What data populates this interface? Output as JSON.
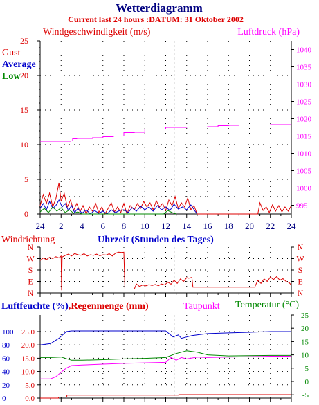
{
  "header": {
    "title": "Wetterdiagramm",
    "subtitle": "Current last 24 hours :DATUM: 31 Oktober 2002"
  },
  "colors": {
    "red": "#dd0000",
    "magenta": "#ff00ff",
    "blue": "#0000cc",
    "green": "#008800",
    "navy": "#000080",
    "axis": "#000000"
  },
  "chart_data": [
    {
      "type": "line",
      "name": "wind-pressure",
      "title": "Windgeschwindigkeit (m/s)",
      "title_right": "Luftdruck (hPa)",
      "legend": [
        "Gust",
        "Average",
        "Low"
      ],
      "x_ticks": [
        "24",
        "2",
        "4",
        "6",
        "8",
        "10",
        "12",
        "14",
        "16",
        "18",
        "20",
        "22",
        "24"
      ],
      "x_range": [
        0,
        24
      ],
      "ylim": [
        0,
        25
      ],
      "y_ticks": [
        "0",
        "5",
        "10",
        "15",
        "20",
        "25"
      ],
      "ylim_right": [
        992.5,
        1042.5
      ],
      "y_ticks_right": [
        "995",
        "1000",
        "1005",
        "1010",
        "1015",
        "1020",
        "1025",
        "1030",
        "1035",
        "1040"
      ],
      "grid": "dotted",
      "series": [
        {
          "name": "Luftdruck",
          "color": "#ff00ff",
          "axis": "right",
          "x": [
            0,
            2,
            2.9,
            3.1,
            3.5,
            5,
            6,
            7,
            8,
            9,
            10,
            12,
            13,
            14,
            16,
            17,
            18,
            19,
            20,
            22,
            24
          ],
          "y": [
            1013.5,
            1013.5,
            1013.6,
            1014.2,
            1014.3,
            1014.5,
            1014.8,
            1015.0,
            1016.0,
            1016.1,
            1017.0,
            1017.5,
            1017.5,
            1017.6,
            1017.7,
            1018.0,
            1018.1,
            1018.2,
            1018.2,
            1018.3,
            1018.3
          ]
        },
        {
          "name": "Gust",
          "color": "#dd0000",
          "axis": "left",
          "x": [
            0,
            0.3,
            0.6,
            0.9,
            1.2,
            1.5,
            1.8,
            2.0,
            2.3,
            2.6,
            2.9,
            3.2,
            3.5,
            3.8,
            4.1,
            4.4,
            4.7,
            5.0,
            5.3,
            5.6,
            5.9,
            6.2,
            6.5,
            6.8,
            7.1,
            7.4,
            7.7,
            8.0,
            8.3,
            8.6,
            9.0,
            9.3,
            9.6,
            9.9,
            10.2,
            10.5,
            10.8,
            11.1,
            11.4,
            11.7,
            12.0,
            12.3,
            12.6,
            12.9,
            13.2,
            13.5,
            13.8,
            14.1,
            14.4,
            14.7,
            15.0,
            15.5,
            20.8,
            21.0,
            21.3,
            21.6,
            21.9,
            22.2,
            22.5,
            22.8,
            23.1,
            23.4,
            23.7,
            24.0
          ],
          "y": [
            1.2,
            2.8,
            1.5,
            3.0,
            1.0,
            2.2,
            4.5,
            1.8,
            3.0,
            1.0,
            2.0,
            0.5,
            1.5,
            0.3,
            1.2,
            0.0,
            1.0,
            0.4,
            1.5,
            0.2,
            1.0,
            0.0,
            0.8,
            1.6,
            0.3,
            1.0,
            0.2,
            1.5,
            0.0,
            1.2,
            0.6,
            1.5,
            0.8,
            1.8,
            1.0,
            1.6,
            0.6,
            1.9,
            1.0,
            1.5,
            0.5,
            2.0,
            1.2,
            2.5,
            0.8,
            1.6,
            1.0,
            2.3,
            0.6,
            1.2,
            0.0,
            0.0,
            0.0,
            1.6,
            0.5,
            1.0,
            0.2,
            1.3,
            0.4,
            1.2,
            0.3,
            1.0,
            0.4,
            1.2
          ]
        },
        {
          "name": "Average",
          "color": "#0000cc",
          "axis": "left",
          "x": [
            0,
            0.3,
            0.6,
            0.9,
            1.2,
            1.5,
            1.8,
            2.1,
            2.4,
            2.7,
            3.0,
            3.3,
            3.6,
            4.0,
            4.4,
            4.8,
            5.2,
            5.6,
            6.0,
            6.4,
            6.8,
            7.2,
            7.6,
            8.0,
            8.4,
            8.8,
            9.2,
            9.6,
            10.0,
            10.4,
            10.8,
            11.2,
            11.6,
            12.0,
            12.4,
            12.8,
            13.2,
            13.6,
            14.0,
            14.4,
            14.8,
            15.0
          ],
          "y": [
            0.8,
            1.5,
            0.6,
            1.8,
            0.8,
            1.2,
            2.0,
            1.0,
            1.5,
            0.5,
            1.2,
            0.2,
            0.8,
            0.1,
            0.6,
            0.0,
            0.5,
            0.1,
            0.4,
            0.0,
            0.6,
            0.2,
            0.5,
            0.6,
            0.2,
            0.9,
            0.4,
            1.1,
            0.6,
            1.0,
            0.4,
            1.2,
            0.6,
            1.0,
            0.5,
            1.4,
            0.7,
            1.0,
            0.6,
            1.3,
            0.4,
            0.0
          ]
        },
        {
          "name": "Low",
          "color": "#008800",
          "axis": "left",
          "x": [
            0,
            0.4,
            0.8,
            1.2,
            1.6,
            2.0,
            2.4,
            2.8,
            3.2,
            3.6,
            4.0,
            11.8,
            12.2,
            12.6,
            13.0
          ],
          "y": [
            0.3,
            0.8,
            0.2,
            1.0,
            0.4,
            0.9,
            0.2,
            0.6,
            0.1,
            0.3,
            0.0,
            0.0,
            0.5,
            0.2,
            0.0
          ]
        }
      ]
    },
    {
      "type": "line",
      "name": "wind-direction",
      "title": "Windrichtung",
      "xlabel": "Uhrzeit (Stunden des Tages)",
      "x_range": [
        0,
        24
      ],
      "y_ticks": [
        "N",
        "W",
        "S",
        "E",
        "N"
      ],
      "ylim": [
        0,
        360
      ],
      "series": [
        {
          "name": "Windrichtung",
          "color": "#dd0000",
          "x": [
            0,
            0.3,
            0.6,
            0.9,
            1.2,
            1.5,
            1.8,
            2.0,
            2.05,
            2.1,
            2.4,
            2.7,
            3.0,
            3.3,
            3.6,
            3.9,
            4.2,
            4.5,
            4.8,
            5.1,
            5.4,
            5.7,
            6.0,
            6.3,
            6.6,
            6.9,
            7.2,
            7.5,
            7.8,
            8.0,
            8.1,
            9.0,
            9.2,
            9.5,
            9.8,
            10.1,
            10.4,
            10.7,
            11.0,
            11.3,
            11.6,
            11.9,
            12.2,
            12.5,
            12.8,
            13.1,
            13.4,
            13.7,
            14.0,
            14.2,
            14.5,
            14.6,
            20.5,
            20.8,
            21.1,
            21.4,
            21.7,
            22.0,
            22.3,
            22.6,
            22.9,
            23.2,
            23.5,
            23.8,
            24.0
          ],
          "y": [
            255,
            275,
            262,
            280,
            270,
            285,
            275,
            290,
            20,
            282,
            295,
            305,
            290,
            310,
            300,
            296,
            308,
            290,
            300,
            295,
            305,
            292,
            300,
            298,
            308,
            290,
            312,
            320,
            318,
            320,
            30,
            30,
            70,
            50,
            62,
            55,
            65,
            58,
            66,
            56,
            70,
            62,
            85,
            68,
            100,
            75,
            110,
            90,
            120,
            115,
            122,
            45,
            45,
            100,
            75,
            110,
            90,
            125,
            105,
            128,
            100,
            112,
            90,
            80,
            60
          ]
        }
      ]
    },
    {
      "type": "line",
      "name": "humidity-rain-temperature",
      "title": "Luftfeuchte (%)",
      "title_2": "Regenmenge (mm)",
      "title_3": "Taupunkt",
      "title_4": "Temperatur (",
      "title_4_unit": "°C)",
      "y_ticks_humidity": [
        "0",
        "20",
        "40",
        "60",
        "80",
        "100"
      ],
      "ylim_humidity": [
        0,
        125
      ],
      "y_ticks_rain": [
        "0.0",
        "5.0",
        "10.0",
        "15.0",
        "20.0",
        "25.0"
      ],
      "ylim_rain": [
        0,
        31.25
      ],
      "y_ticks_temp": [
        "-5",
        "0",
        "5",
        "10",
        "15",
        "20",
        "25"
      ],
      "ylim_temp": [
        -6.25,
        25
      ],
      "series": [
        {
          "name": "Luftfeuchte",
          "color": "#0000cc",
          "axis": "humidity",
          "x": [
            0,
            1,
            1.8,
            2.5,
            3,
            4,
            6,
            8,
            10,
            12,
            12.7,
            13.2,
            13.5,
            14,
            14.5,
            15,
            16,
            18,
            20,
            22,
            24
          ],
          "y": [
            80,
            82,
            90,
            100,
            101,
            101,
            101,
            101,
            101,
            101,
            92,
            95,
            90,
            92,
            94,
            95,
            97,
            98,
            99,
            100,
            100
          ]
        },
        {
          "name": "Regenmenge",
          "color": "#dd0000",
          "axis": "rain",
          "x": [
            0,
            1.7,
            1.75,
            2.5,
            2.55,
            13.2,
            13.25,
            24
          ],
          "y": [
            0,
            0,
            0.4,
            0.4,
            1.1,
            1.1,
            1.3,
            1.3
          ]
        },
        {
          "name": "Taupunkt",
          "color": "#ff00ff",
          "axis": "temp",
          "x": [
            0,
            1,
            1.5,
            2,
            2.5,
            3,
            4,
            6,
            8,
            10,
            12,
            12.5,
            13,
            13.5,
            14,
            15,
            16,
            18,
            20,
            22,
            24
          ],
          "y": [
            1.0,
            1.0,
            1.8,
            3.5,
            5.0,
            6.0,
            6.2,
            6.5,
            6.8,
            7.0,
            7.2,
            9.0,
            8.0,
            9.0,
            8.5,
            9.2,
            9.0,
            9.2,
            9.3,
            9.5,
            9.5
          ]
        },
        {
          "name": "Temperatur",
          "color": "#008800",
          "axis": "temp",
          "x": [
            0,
            1,
            2,
            3,
            4,
            6,
            8,
            10,
            12,
            13,
            14,
            15,
            16,
            18,
            20,
            22,
            24
          ],
          "y": [
            9.0,
            9.0,
            9.2,
            8.0,
            8.0,
            8.2,
            8.5,
            8.7,
            9.0,
            10.5,
            11.5,
            11.0,
            10.0,
            9.6,
            9.7,
            9.8,
            9.8
          ]
        }
      ]
    }
  ]
}
